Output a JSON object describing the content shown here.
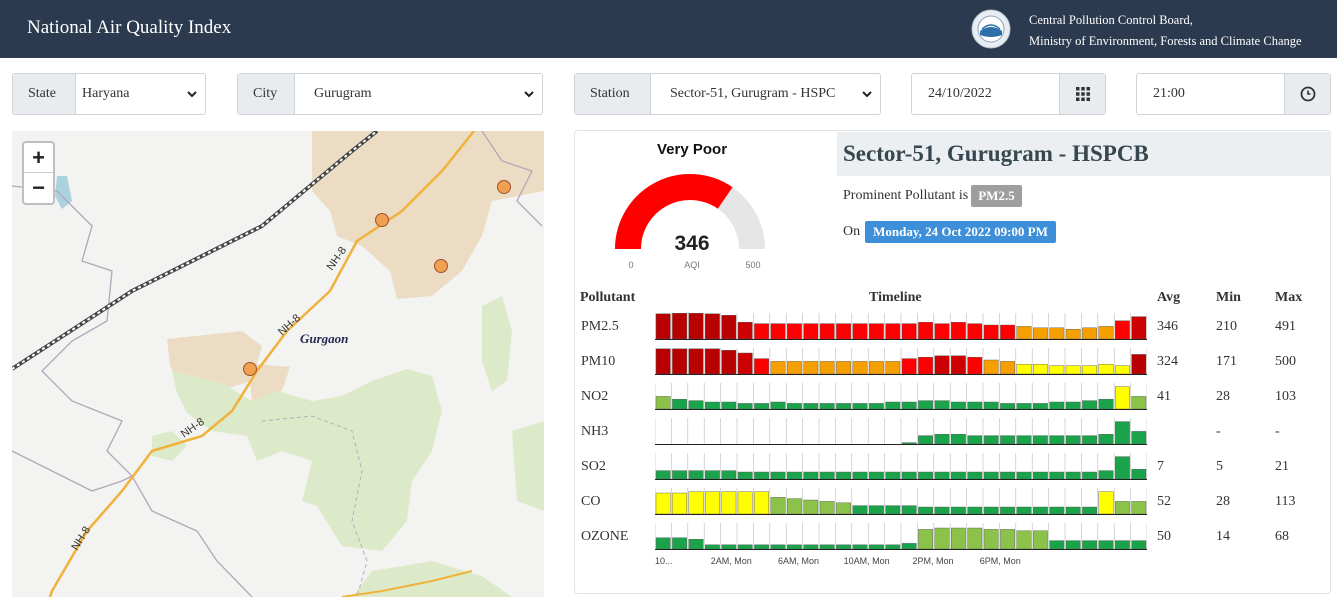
{
  "header": {
    "title": "National Air Quality Index",
    "org_line1": "Central Pollution Control Board,",
    "org_line2": "Ministry of Environment, Forests and Climate Change"
  },
  "filters": {
    "state": {
      "label": "State",
      "value": "Haryana"
    },
    "city": {
      "label": "City",
      "value": "Gurugram"
    },
    "station": {
      "label": "Station",
      "value": "Sector-51, Gurugram - HSPC"
    },
    "date": {
      "value": "24/10/2022"
    },
    "time": {
      "value": "21:00"
    }
  },
  "map": {
    "zoom_in": "+",
    "zoom_out": "−",
    "city_label": "Gurgaon",
    "road_label": "NH-8"
  },
  "aqi": {
    "category": "Very Poor",
    "value": "346",
    "value_num": 346,
    "unit_label": "AQI",
    "min_label": "0",
    "max_label": "500",
    "max_num": 500,
    "color": "#ff0000"
  },
  "station": {
    "name": "Sector-51, Gurugram - HSPCB",
    "prominent_text": "Prominent Pollutant is",
    "prominent_value": "PM2.5",
    "on_text": "On",
    "datetime": "Monday, 24 Oct 2022 09:00 PM"
  },
  "table": {
    "headers": {
      "pollutant": "Pollutant",
      "timeline": "Timeline",
      "avg": "Avg",
      "min": "Min",
      "max": "Max"
    },
    "rows": [
      {
        "name": "PM2.5",
        "avg": "346",
        "min": "210",
        "max": "491",
        "bars": [
          0.9,
          0.92,
          0.92,
          0.9,
          0.85,
          0.6,
          0.55,
          0.55,
          0.55,
          0.55,
          0.55,
          0.55,
          0.55,
          0.55,
          0.55,
          0.55,
          0.6,
          0.55,
          0.6,
          0.55,
          0.5,
          0.5,
          0.45,
          0.4,
          0.4,
          0.35,
          0.4,
          0.45,
          0.65,
          0.8
        ],
        "colors": [
          "#b80000",
          "#b80000",
          "#b80000",
          "#b80000",
          "#b80000",
          "#cc0000",
          "#ff0000",
          "#ff0000",
          "#ff0000",
          "#ff0000",
          "#ff0000",
          "#ff0000",
          "#ff0000",
          "#ff0000",
          "#ff0000",
          "#ff0000",
          "#ff0000",
          "#ff0000",
          "#ff0000",
          "#ff0000",
          "#ff0000",
          "#ff0000",
          "#f5a000",
          "#f5a000",
          "#f5a000",
          "#f5a000",
          "#f5a000",
          "#f5a000",
          "#ff0000",
          "#cc0000"
        ]
      },
      {
        "name": "PM10",
        "avg": "324",
        "min": "171",
        "max": "500",
        "bars": [
          0.9,
          0.9,
          0.9,
          0.9,
          0.85,
          0.75,
          0.55,
          0.45,
          0.45,
          0.45,
          0.45,
          0.45,
          0.45,
          0.45,
          0.45,
          0.55,
          0.6,
          0.65,
          0.65,
          0.6,
          0.5,
          0.45,
          0.35,
          0.35,
          0.3,
          0.3,
          0.3,
          0.35,
          0.3,
          0.7
        ],
        "colors": [
          "#b80000",
          "#b80000",
          "#b80000",
          "#b80000",
          "#b80000",
          "#cc0000",
          "#ff0000",
          "#f5a000",
          "#f5a000",
          "#f5a000",
          "#f5a000",
          "#f5a000",
          "#f5a000",
          "#f5a000",
          "#f5a000",
          "#ff0000",
          "#ff0000",
          "#cc0000",
          "#cc0000",
          "#ff0000",
          "#f5a000",
          "#f5a000",
          "#ffff00",
          "#ffff00",
          "#ffff00",
          "#ffff00",
          "#ffff00",
          "#ffff00",
          "#ffff00",
          "#b80000"
        ]
      },
      {
        "name": "NO2",
        "avg": "41",
        "min": "28",
        "max": "103",
        "bars": [
          0.45,
          0.35,
          0.3,
          0.25,
          0.25,
          0.2,
          0.2,
          0.25,
          0.2,
          0.2,
          0.2,
          0.2,
          0.2,
          0.2,
          0.25,
          0.25,
          0.3,
          0.3,
          0.25,
          0.25,
          0.25,
          0.2,
          0.2,
          0.2,
          0.25,
          0.25,
          0.3,
          0.35,
          0.8,
          0.45
        ],
        "colors": [
          "#8bc34a",
          "#1aa34a",
          "#1aa34a",
          "#1aa34a",
          "#1aa34a",
          "#1aa34a",
          "#1aa34a",
          "#1aa34a",
          "#1aa34a",
          "#1aa34a",
          "#1aa34a",
          "#1aa34a",
          "#1aa34a",
          "#1aa34a",
          "#1aa34a",
          "#1aa34a",
          "#1aa34a",
          "#1aa34a",
          "#1aa34a",
          "#1aa34a",
          "#1aa34a",
          "#1aa34a",
          "#1aa34a",
          "#1aa34a",
          "#1aa34a",
          "#1aa34a",
          "#1aa34a",
          "#1aa34a",
          "#ffff00",
          "#8bc34a"
        ]
      },
      {
        "name": "NH3",
        "avg": "",
        "min": "-",
        "max": "-",
        "bars": [
          0,
          0,
          0,
          0,
          0,
          0,
          0,
          0,
          0,
          0,
          0,
          0,
          0,
          0,
          0,
          0.05,
          0.3,
          0.35,
          0.35,
          0.3,
          0.3,
          0.3,
          0.3,
          0.3,
          0.3,
          0.3,
          0.3,
          0.35,
          0.8,
          0.45
        ],
        "colors": [
          "#1aa34a",
          "#1aa34a",
          "#1aa34a",
          "#1aa34a",
          "#1aa34a",
          "#1aa34a",
          "#1aa34a",
          "#1aa34a",
          "#1aa34a",
          "#1aa34a",
          "#1aa34a",
          "#1aa34a",
          "#1aa34a",
          "#1aa34a",
          "#1aa34a",
          "#1aa34a",
          "#1aa34a",
          "#1aa34a",
          "#1aa34a",
          "#1aa34a",
          "#1aa34a",
          "#1aa34a",
          "#1aa34a",
          "#1aa34a",
          "#1aa34a",
          "#1aa34a",
          "#1aa34a",
          "#1aa34a",
          "#1aa34a",
          "#1aa34a"
        ]
      },
      {
        "name": "SO2",
        "avg": "7",
        "min": "5",
        "max": "21",
        "bars": [
          0.3,
          0.3,
          0.3,
          0.3,
          0.3,
          0.25,
          0.25,
          0.25,
          0.25,
          0.25,
          0.25,
          0.25,
          0.25,
          0.25,
          0.25,
          0.25,
          0.25,
          0.25,
          0.25,
          0.25,
          0.25,
          0.25,
          0.25,
          0.25,
          0.25,
          0.25,
          0.25,
          0.3,
          0.8,
          0.35
        ],
        "colors": [
          "#1aa34a",
          "#1aa34a",
          "#1aa34a",
          "#1aa34a",
          "#1aa34a",
          "#1aa34a",
          "#1aa34a",
          "#1aa34a",
          "#1aa34a",
          "#1aa34a",
          "#1aa34a",
          "#1aa34a",
          "#1aa34a",
          "#1aa34a",
          "#1aa34a",
          "#1aa34a",
          "#1aa34a",
          "#1aa34a",
          "#1aa34a",
          "#1aa34a",
          "#1aa34a",
          "#1aa34a",
          "#1aa34a",
          "#1aa34a",
          "#1aa34a",
          "#1aa34a",
          "#1aa34a",
          "#1aa34a",
          "#1aa34a",
          "#1aa34a"
        ]
      },
      {
        "name": "CO",
        "avg": "52",
        "min": "28",
        "max": "113",
        "bars": [
          0.75,
          0.75,
          0.8,
          0.8,
          0.8,
          0.8,
          0.8,
          0.6,
          0.55,
          0.5,
          0.45,
          0.4,
          0.3,
          0.3,
          0.3,
          0.3,
          0.25,
          0.25,
          0.25,
          0.25,
          0.25,
          0.25,
          0.25,
          0.25,
          0.25,
          0.25,
          0.25,
          0.8,
          0.45,
          0.45
        ],
        "colors": [
          "#ffff00",
          "#ffff00",
          "#ffff00",
          "#ffff00",
          "#ffff00",
          "#ffff00",
          "#ffff00",
          "#8bc34a",
          "#8bc34a",
          "#8bc34a",
          "#8bc34a",
          "#8bc34a",
          "#1aa34a",
          "#1aa34a",
          "#1aa34a",
          "#1aa34a",
          "#1aa34a",
          "#1aa34a",
          "#1aa34a",
          "#1aa34a",
          "#1aa34a",
          "#1aa34a",
          "#1aa34a",
          "#1aa34a",
          "#1aa34a",
          "#1aa34a",
          "#1aa34a",
          "#ffff00",
          "#8bc34a",
          "#8bc34a"
        ]
      },
      {
        "name": "OZONE",
        "avg": "50",
        "min": "14",
        "max": "68",
        "bars": [
          0.4,
          0.4,
          0.35,
          0.15,
          0.15,
          0.15,
          0.15,
          0.15,
          0.15,
          0.15,
          0.15,
          0.15,
          0.15,
          0.15,
          0.15,
          0.2,
          0.7,
          0.75,
          0.75,
          0.75,
          0.7,
          0.7,
          0.65,
          0.65,
          0.3,
          0.3,
          0.3,
          0.3,
          0.3,
          0.3
        ],
        "colors": [
          "#1aa34a",
          "#1aa34a",
          "#1aa34a",
          "#1aa34a",
          "#1aa34a",
          "#1aa34a",
          "#1aa34a",
          "#1aa34a",
          "#1aa34a",
          "#1aa34a",
          "#1aa34a",
          "#1aa34a",
          "#1aa34a",
          "#1aa34a",
          "#1aa34a",
          "#1aa34a",
          "#8bc34a",
          "#8bc34a",
          "#8bc34a",
          "#8bc34a",
          "#8bc34a",
          "#8bc34a",
          "#8bc34a",
          "#8bc34a",
          "#1aa34a",
          "#1aa34a",
          "#1aa34a",
          "#1aa34a",
          "#1aa34a",
          "#1aa34a"
        ]
      }
    ],
    "tick_labels": [
      "10...",
      "2AM, Mon",
      "6AM, Mon",
      "10AM, Mon",
      "2PM, Mon",
      "6PM, Mon"
    ],
    "tick_label_bar_index": [
      0,
      3.4,
      7.5,
      11.5,
      15.7,
      19.8
    ]
  }
}
